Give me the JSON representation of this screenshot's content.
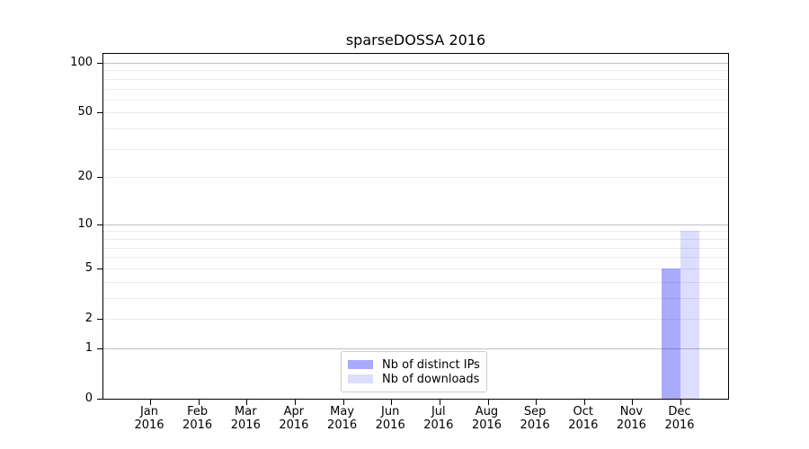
{
  "chart_data": {
    "type": "bar",
    "title": "sparseDOSSA 2016",
    "categories": [
      {
        "month": "Jan",
        "year": "2016"
      },
      {
        "month": "Feb",
        "year": "2016"
      },
      {
        "month": "Mar",
        "year": "2016"
      },
      {
        "month": "Apr",
        "year": "2016"
      },
      {
        "month": "May",
        "year": "2016"
      },
      {
        "month": "Jun",
        "year": "2016"
      },
      {
        "month": "Jul",
        "year": "2016"
      },
      {
        "month": "Aug",
        "year": "2016"
      },
      {
        "month": "Sep",
        "year": "2016"
      },
      {
        "month": "Oct",
        "year": "2016"
      },
      {
        "month": "Nov",
        "year": "2016"
      },
      {
        "month": "Dec",
        "year": "2016"
      }
    ],
    "series": [
      {
        "name": "Nb of distinct IPs",
        "fill": "rgba(0,0,255,0.333)",
        "legend_color": "#aaaaff",
        "values": [
          0,
          0,
          0,
          0,
          0,
          0,
          0,
          0,
          0,
          0,
          0,
          5
        ]
      },
      {
        "name": "Nb of downloads",
        "fill": "rgba(0,0,255,0.133)",
        "legend_color": "#ddddff",
        "values": [
          0,
          0,
          0,
          0,
          0,
          0,
          0,
          0,
          0,
          0,
          0,
          9
        ]
      }
    ],
    "y_axis": {
      "scale": "log1p",
      "tick_values": [
        100,
        50,
        20,
        10,
        5,
        2,
        1,
        0
      ],
      "major_gridlines": [
        1,
        10,
        100
      ],
      "minor_gridlines": [
        2,
        3,
        4,
        5,
        6,
        7,
        8,
        9,
        20,
        30,
        40,
        50,
        60,
        70,
        80,
        90
      ],
      "ylim": [
        0,
        115
      ]
    },
    "legend": {
      "position": "lower center"
    },
    "style": {
      "major_grid_color": "#c0c0c0",
      "minor_grid_color": "#ebebeb",
      "spine_color": "#000000",
      "text_color": "#000000"
    }
  }
}
